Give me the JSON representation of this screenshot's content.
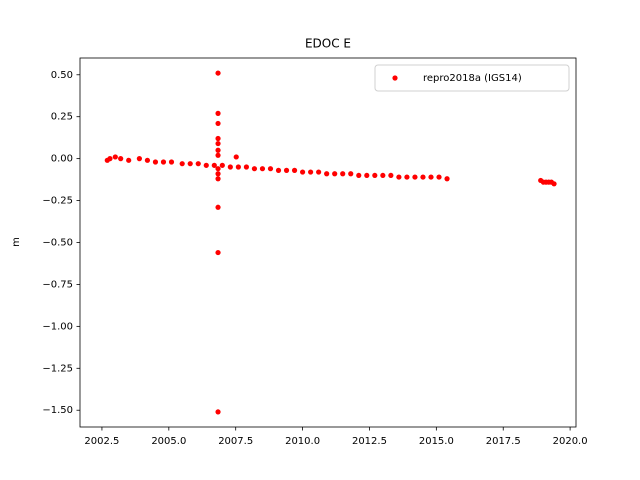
{
  "chart_data": {
    "type": "scatter",
    "title": "EDOC E",
    "y_label": "m",
    "xlim": [
      2001.68,
      2020.22
    ],
    "ylim": [
      -1.6,
      0.6
    ],
    "xticks": [
      {
        "value": 2002.5,
        "label": "2002.5"
      },
      {
        "value": 2005,
        "label": "2005.0"
      },
      {
        "value": 2007.5,
        "label": "2007.5"
      },
      {
        "value": 2010,
        "label": "2010.0"
      },
      {
        "value": 2012.5,
        "label": "2012.5"
      },
      {
        "value": 2015,
        "label": "2015.0"
      },
      {
        "value": 2017.5,
        "label": "2017.5"
      },
      {
        "value": 2020,
        "label": "2020.0"
      }
    ],
    "yticks": [
      {
        "value": 0.5,
        "label": "0.50"
      },
      {
        "value": 0.25,
        "label": "0.25"
      },
      {
        "value": 0,
        "label": "0.00"
      },
      {
        "value": -0.25,
        "label": "−0.25"
      },
      {
        "value": -0.5,
        "label": "−0.50"
      },
      {
        "value": -0.75,
        "label": "−0.75"
      },
      {
        "value": -1,
        "label": "−1.00"
      },
      {
        "value": -1.25,
        "label": "−1.25"
      },
      {
        "value": -1.5,
        "label": "−1.50"
      }
    ],
    "grid": false,
    "legend": "upper right",
    "series": [
      {
        "name": "repro2018a (IGS14)",
        "color": "#ff0000",
        "x": [
          2002.7,
          2002.8,
          2003.0,
          2003.2,
          2003.5,
          2003.9,
          2004.2,
          2004.5,
          2004.8,
          2005.1,
          2005.5,
          2005.8,
          2006.1,
          2006.4,
          2006.7,
          2007.0,
          2007.3,
          2007.6,
          2007.9,
          2008.2,
          2008.5,
          2008.8,
          2009.1,
          2009.4,
          2009.7,
          2010.0,
          2010.3,
          2010.6,
          2010.9,
          2011.2,
          2011.5,
          2011.8,
          2012.1,
          2012.4,
          2012.7,
          2013.0,
          2013.3,
          2013.6,
          2013.9,
          2014.2,
          2014.5,
          2014.8,
          2015.1,
          2015.4,
          2018.9,
          2019.0,
          2019.1,
          2019.2,
          2019.3,
          2019.4,
          2006.84,
          2006.84,
          2006.84,
          2006.84,
          2006.84,
          2006.84,
          2006.84,
          2006.84,
          2006.84,
          2006.84,
          2006.84,
          2006.84,
          2006.84,
          2007.52
        ],
        "values": [
          -0.01,
          0.0,
          0.01,
          0.0,
          -0.01,
          0.0,
          -0.01,
          -0.02,
          -0.02,
          -0.02,
          -0.03,
          -0.03,
          -0.03,
          -0.04,
          -0.04,
          -0.04,
          -0.05,
          -0.05,
          -0.05,
          -0.06,
          -0.06,
          -0.06,
          -0.07,
          -0.07,
          -0.07,
          -0.08,
          -0.08,
          -0.08,
          -0.09,
          -0.09,
          -0.09,
          -0.09,
          -0.1,
          -0.1,
          -0.1,
          -0.1,
          -0.1,
          -0.11,
          -0.11,
          -0.11,
          -0.11,
          -0.11,
          -0.11,
          -0.12,
          -0.13,
          -0.14,
          -0.14,
          -0.14,
          -0.14,
          -0.15,
          0.51,
          0.27,
          0.21,
          0.12,
          0.09,
          0.05,
          0.02,
          -0.06,
          -0.09,
          -0.12,
          -0.29,
          -0.56,
          -1.51,
          0.01
        ]
      }
    ]
  }
}
